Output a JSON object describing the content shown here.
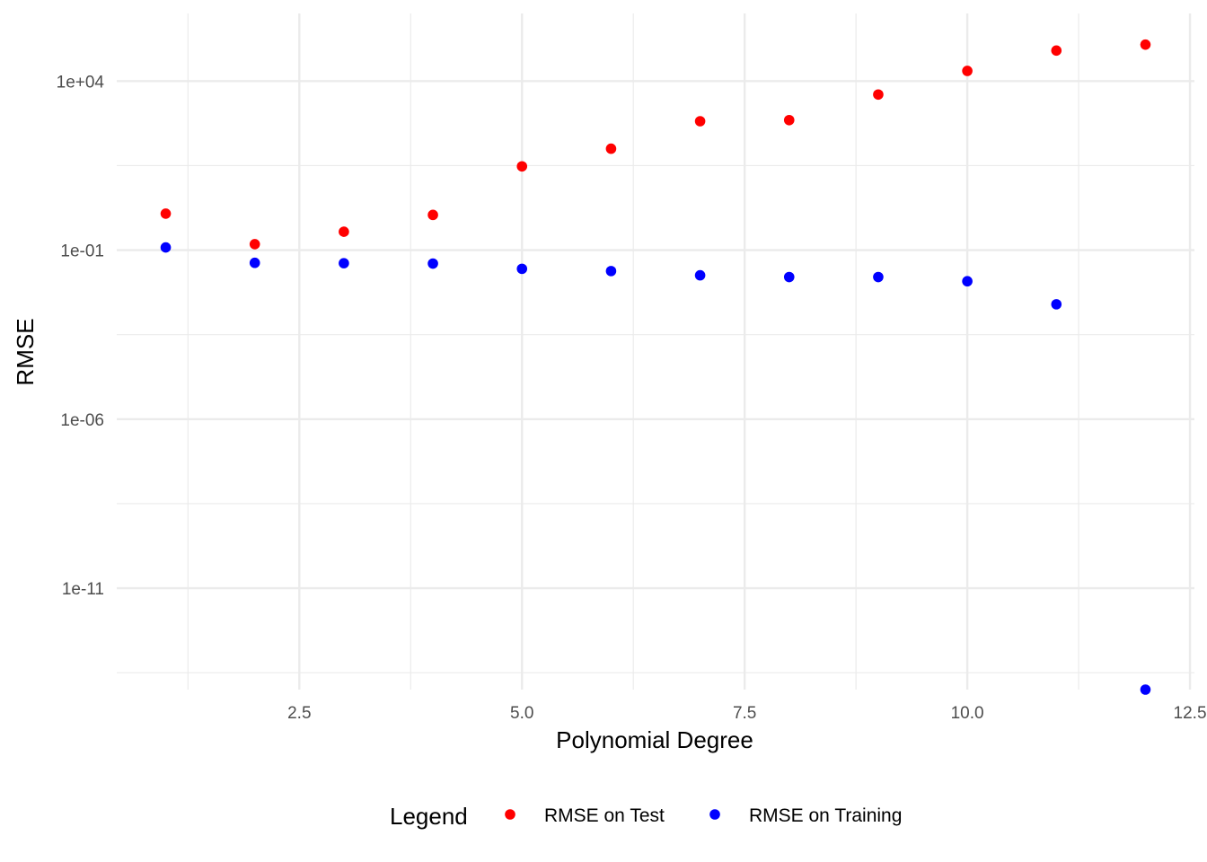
{
  "chart_data": {
    "type": "scatter",
    "title": "",
    "xlabel": "Polynomial Degree",
    "ylabel": "RMSE",
    "xlim": [
      0.45,
      12.55
    ],
    "x_ticks": [
      2.5,
      5.0,
      7.5,
      10.0,
      12.5
    ],
    "x_tick_labels": [
      "2.5",
      "5.0",
      "7.5",
      "10.0",
      "12.5"
    ],
    "y_scale": "log10",
    "ylim": [
      1e-14,
      1000000.0
    ],
    "y_ticks": [
      10000.0,
      0.1,
      1e-06,
      1e-11
    ],
    "y_tick_labels": [
      "1e+04",
      "1e-01",
      "1e-06",
      "1e-11"
    ],
    "grid": true,
    "legend": {
      "title": "Legend",
      "position": "bottom"
    },
    "series": [
      {
        "name": "RMSE on Test",
        "color": "#ff0000",
        "x": [
          1,
          2,
          3,
          4,
          5,
          6,
          7,
          8,
          9,
          10,
          11,
          12
        ],
        "y": [
          1.2,
          0.15,
          0.35,
          1.1,
          30,
          100,
          650,
          700,
          4000,
          20000,
          80000,
          120000
        ]
      },
      {
        "name": "RMSE on Training",
        "color": "#0000ff",
        "x": [
          1,
          2,
          3,
          4,
          5,
          6,
          7,
          8,
          9,
          10,
          11,
          12
        ],
        "y": [
          0.12,
          0.042,
          0.041,
          0.04,
          0.028,
          0.024,
          0.018,
          0.016,
          0.016,
          0.012,
          0.0025,
          1e-14
        ]
      }
    ]
  }
}
